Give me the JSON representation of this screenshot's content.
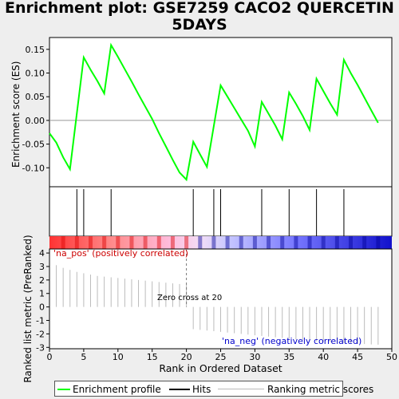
{
  "title": "Enrichment plot: GSE7259 CACO2 QUERCETIN 5DAYS",
  "chart_data": [
    {
      "type": "line",
      "name": "enrichment-profile",
      "ylabel": "Enrichment score (ES)",
      "xlim": [
        0,
        50
      ],
      "ylim": [
        -0.14,
        0.175
      ],
      "yticks": [
        -0.1,
        -0.05,
        0.0,
        0.05,
        0.1,
        0.15
      ],
      "ytick_labels": [
        "-0.10",
        "-0.05",
        "0.00",
        "0.05",
        "0.10",
        "0.15"
      ],
      "color": "#00ff00",
      "x": [
        0,
        1,
        2,
        3,
        4,
        5,
        6,
        7,
        8,
        9,
        10,
        11,
        12,
        13,
        14,
        15,
        16,
        17,
        18,
        19,
        20,
        21,
        22,
        23,
        24,
        25,
        26,
        27,
        28,
        29,
        30,
        31,
        32,
        33,
        34,
        35,
        36,
        37,
        38,
        39,
        40,
        41,
        42,
        43,
        44,
        45,
        46,
        47,
        48
      ],
      "y": [
        -0.027,
        -0.047,
        -0.078,
        -0.103,
        0.015,
        0.133,
        0.107,
        0.083,
        0.057,
        0.159,
        0.134,
        0.108,
        0.082,
        0.055,
        0.029,
        0.003,
        -0.027,
        -0.055,
        -0.083,
        -0.11,
        -0.125,
        -0.045,
        -0.072,
        -0.098,
        -0.012,
        0.074,
        0.05,
        0.026,
        0.002,
        -0.022,
        -0.055,
        0.039,
        0.014,
        -0.011,
        -0.04,
        0.059,
        0.035,
        0.009,
        -0.02,
        0.088,
        0.062,
        0.036,
        0.012,
        0.128,
        0.1,
        0.075,
        0.048,
        0.021,
        -0.005
      ]
    },
    {
      "type": "bar",
      "name": "hits",
      "hits_x": [
        4,
        5,
        9,
        21,
        24,
        25,
        31,
        35,
        39,
        43
      ]
    },
    {
      "type": "area",
      "name": "ranking-metric",
      "xlabel": "Rank in Ordered Dataset",
      "ylabel": "Ranked list metric (PreRanked)",
      "xticks": [
        0,
        5,
        10,
        15,
        20,
        25,
        30,
        35,
        40,
        45,
        50
      ],
      "yticks": [
        -3,
        -2,
        -1,
        0,
        1,
        2,
        3,
        4
      ],
      "ylim": [
        -3.1,
        4.3
      ],
      "color": "#bbbbbb",
      "x": [
        1,
        2,
        3,
        4,
        5,
        6,
        7,
        8,
        9,
        10,
        11,
        12,
        13,
        14,
        15,
        16,
        17,
        18,
        19,
        20,
        21,
        22,
        23,
        24,
        25,
        26,
        27,
        28,
        29,
        30,
        31,
        32,
        33,
        34,
        35,
        36,
        37,
        38,
        39,
        40,
        41,
        42,
        43,
        44,
        45,
        46,
        47,
        48
      ],
      "y": [
        3.1,
        2.9,
        2.75,
        2.6,
        2.5,
        2.4,
        2.3,
        2.25,
        2.2,
        2.15,
        2.1,
        2.05,
        2.0,
        1.95,
        1.9,
        1.85,
        1.8,
        1.75,
        1.7,
        1.65,
        -1.65,
        -1.7,
        -1.75,
        -1.8,
        -1.85,
        -1.9,
        -1.95,
        -2.0,
        -2.05,
        -2.1,
        -2.15,
        -2.2,
        -2.25,
        -2.3,
        -2.35,
        -2.4,
        -2.45,
        -2.5,
        -2.55,
        -2.6,
        -2.62,
        -2.65,
        -2.68,
        -2.7,
        -2.72,
        -2.75,
        -2.78,
        -2.8
      ],
      "annotations": {
        "zero_cross": "Zero cross at 20",
        "pos": "'na_pos' (positively correlated)",
        "neg": "'na_neg' (negatively correlated)"
      },
      "pos_color": "#cc0000",
      "neg_color": "#0000cc"
    }
  ],
  "legend": {
    "items": [
      "Enrichment profile",
      "Hits",
      "Ranking metric scores"
    ],
    "colors": [
      "#00ff00",
      "#000000",
      "#bbbbbb"
    ]
  }
}
